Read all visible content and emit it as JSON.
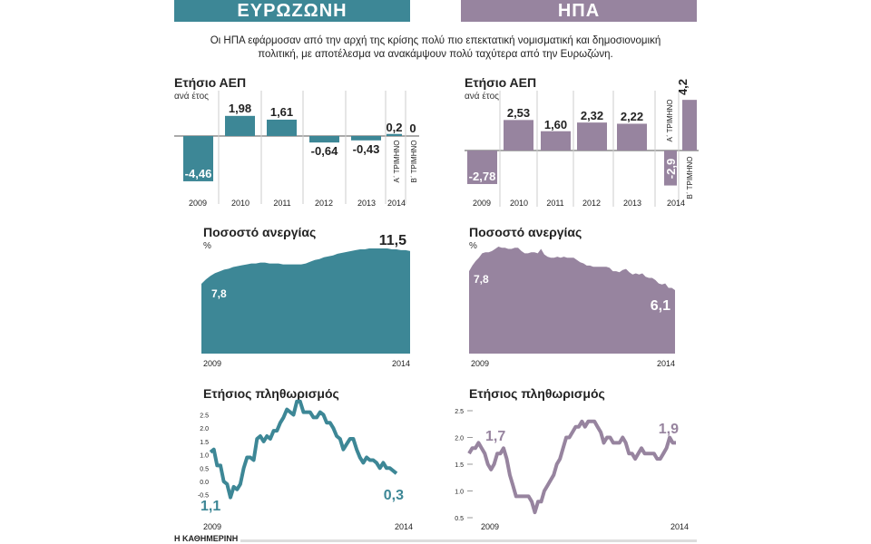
{
  "headers": {
    "eurozone": "ΕΥΡΩΖΩΝΗ",
    "usa": "ΗΠΑ"
  },
  "intro": "Οι ΗΠΑ εφάρμοσαν από την αρχή της κρίσης πολύ πιο επεκτατική νομισματική και δημοσιονομική πολιτική, με αποτέλεσμα να ανακάμψουν πολύ ταχύτερα από την Ευρωζώνη.",
  "colors": {
    "eurozone": "#3d8796",
    "usa": "#97849f"
  },
  "footer": "Η ΚΑΘΗΜΕΡΙΝΗ",
  "chart_data": [
    {
      "id": "eu_gdp",
      "type": "bar",
      "title": "Ετήσιο ΑΕΠ",
      "subtitle": "ανά έτος",
      "categories": [
        "2009",
        "2010",
        "2011",
        "2012",
        "2013",
        "2014"
      ],
      "bars": [
        {
          "year": "2009",
          "value": -4.46,
          "label": "-4,46"
        },
        {
          "year": "2010",
          "value": 1.98,
          "label": "1,98"
        },
        {
          "year": "2011",
          "value": 1.61,
          "label": "1,61"
        },
        {
          "year": "2012",
          "value": -0.64,
          "label": "-0,64"
        },
        {
          "year": "2013",
          "value": -0.43,
          "label": "-0,43"
        },
        {
          "year": "2014",
          "quarter": "Α΄ ΤΡΙΜΗΝΟ",
          "value": 0.2,
          "label": "0,2"
        },
        {
          "year": "2014",
          "quarter": "Β΄ ΤΡΙΜΗΝΟ",
          "value": 0,
          "label": "0"
        }
      ]
    },
    {
      "id": "us_gdp",
      "type": "bar",
      "title": "Ετήσιο ΑΕΠ",
      "subtitle": "ανά έτος",
      "categories": [
        "2009",
        "2010",
        "2011",
        "2012",
        "2013",
        "2014"
      ],
      "bars": [
        {
          "year": "2009",
          "value": -2.78,
          "label": "-2,78"
        },
        {
          "year": "2010",
          "value": 2.53,
          "label": "2,53"
        },
        {
          "year": "2011",
          "value": 1.6,
          "label": "1,60"
        },
        {
          "year": "2012",
          "value": 2.32,
          "label": "2,32"
        },
        {
          "year": "2013",
          "value": 2.22,
          "label": "2,22"
        },
        {
          "year": "2014",
          "quarter": "Α΄ ΤΡΙΜΗΝΟ",
          "value": -2.9,
          "label": "-2,9"
        },
        {
          "year": "2014",
          "quarter": "Β΄ ΤΡΙΜΗΝΟ",
          "value": 4.2,
          "label": "4,2"
        }
      ]
    },
    {
      "id": "eu_unemp",
      "type": "area",
      "title": "Ποσοστό ανεργίας",
      "ylabel": "%",
      "x_start": "2009",
      "x_end": "2014",
      "start_label": "7,8",
      "end_label": "11,5",
      "values": [
        7.8,
        8.3,
        8.7,
        9.0,
        9.2,
        9.4,
        9.5,
        9.7,
        9.8,
        9.9,
        10.0,
        10.1,
        10.1,
        10.2,
        10.2,
        10.1,
        10.1,
        10.1,
        10.0,
        10.0,
        10.0,
        10.0,
        10.0,
        10.1,
        10.3,
        10.5,
        10.6,
        10.8,
        10.9,
        11.0,
        11.2,
        11.3,
        11.4,
        11.5,
        11.6,
        11.7,
        11.7,
        11.8,
        11.8,
        11.8,
        11.8,
        11.8,
        11.7,
        11.7,
        11.6,
        11.6,
        11.5
      ]
    },
    {
      "id": "us_unemp",
      "type": "area",
      "title": "Ποσοστό ανεργίας",
      "ylabel": "%",
      "x_start": "2009",
      "x_end": "2014",
      "start_label": "7,8",
      "end_label": "6,1",
      "values": [
        7.8,
        8.3,
        8.7,
        9.0,
        9.4,
        9.5,
        9.5,
        9.6,
        9.8,
        10.0,
        9.9,
        9.9,
        9.8,
        9.8,
        9.9,
        9.9,
        9.6,
        9.4,
        9.4,
        9.5,
        9.5,
        9.4,
        9.8,
        9.3,
        9.1,
        9.0,
        9.0,
        9.1,
        9.0,
        9.1,
        9.0,
        9.0,
        9.0,
        8.8,
        8.6,
        8.5,
        8.3,
        8.3,
        8.2,
        8.2,
        8.2,
        8.2,
        8.2,
        8.1,
        7.8,
        7.8,
        7.7,
        7.9,
        8.0,
        7.7,
        7.5,
        7.6,
        7.5,
        7.6,
        7.3,
        7.2,
        7.2,
        7.0,
        6.7,
        6.6,
        6.7,
        6.3,
        6.3,
        6.1
      ]
    },
    {
      "id": "eu_infl",
      "type": "line",
      "title": "Ετήσιος πληθωρισμός",
      "x_start": "2009",
      "x_end": "2014",
      "yticks": [
        "2.5",
        "2.0",
        "1.5",
        "1.0",
        "0.5",
        "0.0",
        "-0.5"
      ],
      "start_label": "1,1",
      "end_label": "0,3",
      "values": [
        1.1,
        1.2,
        0.6,
        0.6,
        0.0,
        -0.1,
        -0.6,
        -0.2,
        -0.3,
        -0.1,
        0.5,
        0.9,
        0.9,
        0.8,
        1.6,
        1.7,
        1.5,
        1.7,
        1.6,
        1.9,
        1.9,
        2.2,
        2.4,
        2.7,
        2.6,
        2.5,
        3.0,
        3.0,
        2.6,
        2.6,
        2.6,
        2.4,
        2.4,
        2.6,
        2.5,
        2.2,
        2.2,
        2.0,
        1.7,
        1.6,
        1.2,
        1.4,
        1.6,
        1.6,
        1.2,
        0.9,
        0.7,
        0.9,
        0.8,
        0.8,
        0.7,
        0.5,
        0.7,
        0.5,
        0.5,
        0.4,
        0.3
      ]
    },
    {
      "id": "us_infl",
      "type": "line",
      "title": "Ετήσιος πληθωρισμός",
      "x_start": "2009",
      "x_end": "2014",
      "yticks": [
        "2.5",
        "2.0",
        "1.5",
        "1.0",
        "0.5"
      ],
      "start_label": "1,7",
      "end_label": "1,9",
      "values": [
        1.7,
        1.8,
        1.8,
        1.9,
        1.8,
        1.7,
        1.5,
        1.4,
        1.5,
        1.7,
        1.7,
        1.8,
        1.6,
        1.3,
        1.1,
        0.9,
        0.9,
        0.9,
        0.9,
        0.9,
        0.8,
        0.6,
        0.8,
        0.8,
        1.0,
        1.1,
        1.2,
        1.3,
        1.5,
        1.6,
        1.8,
        2.0,
        2.0,
        2.1,
        2.2,
        2.2,
        2.3,
        2.2,
        2.3,
        2.3,
        2.3,
        2.2,
        2.1,
        1.9,
        2.0,
        2.0,
        1.9,
        1.9,
        1.9,
        2.0,
        1.9,
        1.7,
        1.7,
        1.6,
        1.7,
        1.8,
        1.7,
        1.7,
        1.7,
        1.7,
        1.6,
        1.6,
        1.7,
        1.8,
        2.0,
        1.9,
        1.9
      ]
    }
  ]
}
